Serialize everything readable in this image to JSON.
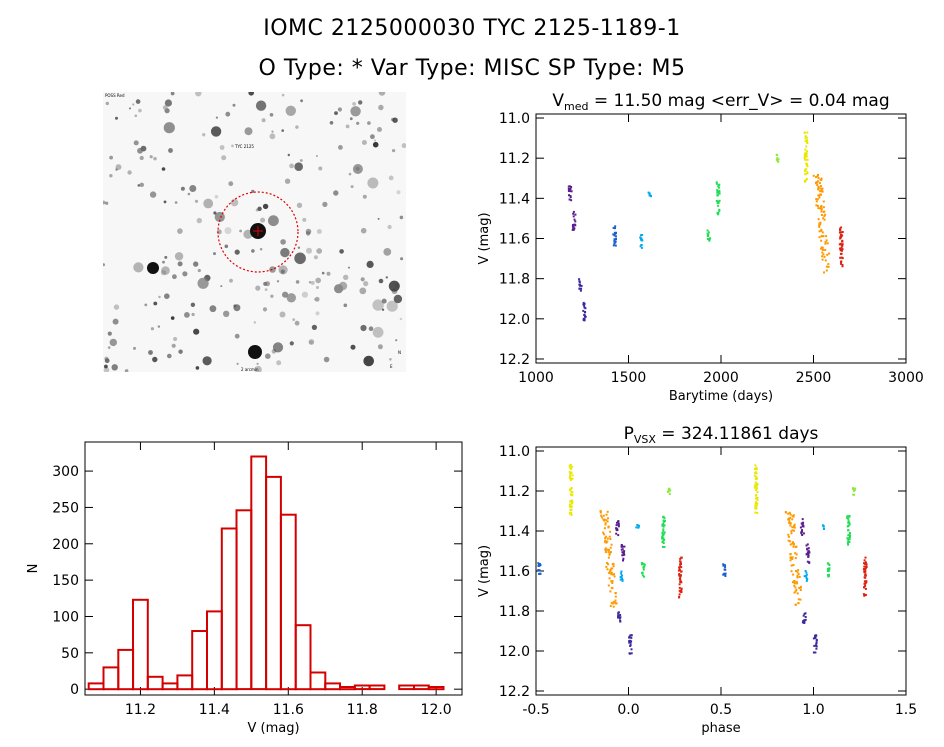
{
  "header": {
    "line1": "IOMC 2125000030    TYC 2125-1189-1",
    "line2": "O Type: *   Var Type: MISC   SP Type: M5"
  },
  "colors": {
    "hist": "#d40000",
    "axis": "#000000",
    "circle": "#e00000",
    "palette": [
      "#5a1f8c",
      "#3a2aa0",
      "#1a5fd0",
      "#00aaee",
      "#22dd55",
      "#8ee840",
      "#e8e800",
      "#ff9900",
      "#dd2211"
    ]
  },
  "finder_chart": {
    "type": "image",
    "description_icon": "star-field-icon",
    "labels": [
      "POSS Red",
      "TYC 2125",
      "N",
      "E",
      "2 arcmin"
    ]
  },
  "chart_data": [
    {
      "id": "lightcurve",
      "type": "scatter",
      "title_main": "V",
      "title_sub": "med",
      "title_rest": " = 11.50 mag <err_V> = 0.04 mag",
      "xlabel": "Barytime (days)",
      "ylabel": "V (mag)",
      "xlim": [
        1000,
        3000
      ],
      "ylim": [
        12.22,
        10.98
      ],
      "xticks": [
        1000,
        1500,
        2000,
        2500,
        3000
      ],
      "yticks": [
        11.0,
        11.2,
        11.4,
        11.6,
        11.8,
        12.0,
        12.2
      ],
      "clusters": [
        {
          "x": 1185,
          "y": [
            11.34,
            11.43
          ],
          "color": 0
        },
        {
          "x": 1205,
          "y": [
            11.46,
            11.56
          ],
          "color": 0
        },
        {
          "x": 1240,
          "y": [
            11.8,
            11.86
          ],
          "color": 1
        },
        {
          "x": 1262,
          "y": [
            11.92,
            12.02
          ],
          "color": 1
        },
        {
          "x": 1425,
          "y": [
            11.53,
            11.64
          ],
          "color": 2
        },
        {
          "x": 1570,
          "y": [
            11.58,
            11.65
          ],
          "color": 3
        },
        {
          "x": 1615,
          "y": [
            11.37,
            11.39
          ],
          "color": 3
        },
        {
          "x": 1935,
          "y": [
            11.56,
            11.63
          ],
          "color": 4
        },
        {
          "x": 1985,
          "y": [
            11.32,
            11.48
          ],
          "color": 4
        },
        {
          "x": 2305,
          "y": [
            11.18,
            11.22
          ],
          "color": 5
        },
        {
          "x": 2460,
          "y": [
            11.07,
            11.32
          ],
          "color": 6
        },
        {
          "x": 2520,
          "y": [
            11.28,
            11.78
          ],
          "color": 7
        },
        {
          "x": 2650,
          "y": [
            11.53,
            11.74
          ],
          "color": 8
        }
      ]
    },
    {
      "id": "histogram",
      "type": "bar",
      "xlabel": "V (mag)",
      "ylabel": "N",
      "xlim": [
        11.05,
        12.07
      ],
      "ylim": [
        -8,
        340
      ],
      "xticks": [
        11.2,
        11.4,
        11.6,
        11.8,
        12.0
      ],
      "yticks": [
        0,
        50,
        100,
        150,
        200,
        250,
        300
      ],
      "bin_width": 0.04,
      "bin_start": 11.06,
      "counts": [
        8,
        30,
        54,
        123,
        17,
        8,
        19,
        80,
        107,
        221,
        246,
        320,
        292,
        240,
        88,
        23,
        8,
        3,
        5,
        5,
        0,
        5,
        5,
        3
      ]
    },
    {
      "id": "phased",
      "type": "scatter",
      "title_main": "P",
      "title_sub": "VSX",
      "title_rest": " = 324.11861 days",
      "xlabel": "phase",
      "ylabel": "V (mag)",
      "xlim": [
        -0.5,
        1.5
      ],
      "ylim": [
        12.22,
        10.98
      ],
      "xticks": [
        -0.5,
        0.0,
        0.5,
        1.0,
        1.5
      ],
      "yticks": [
        11.0,
        11.2,
        11.4,
        11.6,
        11.8,
        12.0,
        12.2
      ],
      "clusters": [
        {
          "x": -0.31,
          "y": [
            11.07,
            11.32
          ],
          "color": 6
        },
        {
          "x": -0.13,
          "y": [
            11.3,
            11.78
          ],
          "color": 7
        },
        {
          "x": -0.06,
          "y": [
            11.34,
            11.43
          ],
          "color": 0
        },
        {
          "x": -0.03,
          "y": [
            11.46,
            11.56
          ],
          "color": 0
        },
        {
          "x": -0.48,
          "y": [
            11.56,
            11.63
          ],
          "color": 2
        },
        {
          "x": 0.28,
          "y": [
            11.53,
            11.74
          ],
          "color": 8
        },
        {
          "x": 0.01,
          "y": [
            11.92,
            12.02
          ],
          "color": 1
        },
        {
          "x": -0.05,
          "y": [
            11.8,
            11.86
          ],
          "color": 1
        },
        {
          "x": -0.04,
          "y": [
            11.6,
            11.65
          ],
          "color": 3
        },
        {
          "x": 0.08,
          "y": [
            11.56,
            11.63
          ],
          "color": 4
        },
        {
          "x": 0.19,
          "y": [
            11.32,
            11.48
          ],
          "color": 4
        },
        {
          "x": 0.22,
          "y": [
            11.18,
            11.22
          ],
          "color": 5
        },
        {
          "x": 0.05,
          "y": [
            11.37,
            11.39
          ],
          "color": 3
        }
      ]
    }
  ]
}
